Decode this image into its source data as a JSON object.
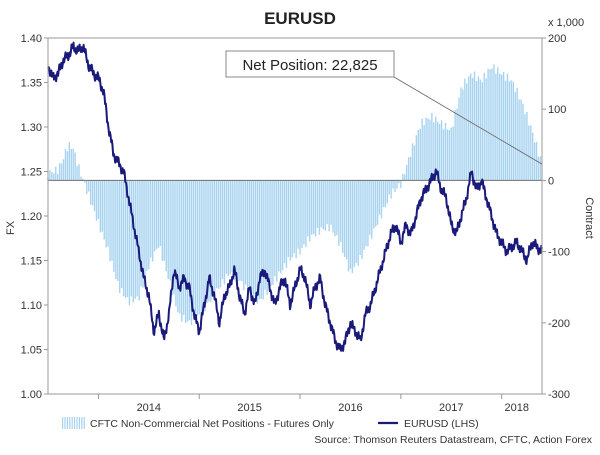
{
  "chart_data": {
    "type": "bar+line",
    "title": "EURUSD",
    "left_axis": {
      "label": "FX",
      "ylim": [
        1.0,
        1.4
      ],
      "ticks": [
        "1.00",
        "1.05",
        "1.10",
        "1.15",
        "1.20",
        "1.25",
        "1.30",
        "1.35",
        "1.40"
      ]
    },
    "right_axis": {
      "label": "Contract",
      "unit_note": "x 1,000",
      "ylim": [
        -300,
        200
      ],
      "ticks": [
        "-300",
        "-200",
        "-100",
        "0",
        "100",
        "200"
      ]
    },
    "x_axis": {
      "range": [
        2013.5,
        2018.4
      ],
      "ticks": [
        "2014",
        "2015",
        "2016",
        "2017",
        "2018"
      ]
    },
    "annotation": {
      "text": "Net Position: 22,825",
      "value": 22.825,
      "points_to": [
        2018.4,
        22.825
      ]
    },
    "series": [
      {
        "name": "CFTC Non-Commercial Net Positions - Futures Only",
        "type": "bar",
        "axis": "right",
        "color": "#a8d3f0",
        "x": [
          2013.5,
          2013.6,
          2013.65,
          2013.7,
          2013.75,
          2013.8,
          2013.9,
          2014.0,
          2014.1,
          2014.2,
          2014.3,
          2014.4,
          2014.5,
          2014.6,
          2014.7,
          2014.8,
          2014.9,
          2015.0,
          2015.1,
          2015.2,
          2015.3,
          2015.4,
          2015.5,
          2015.6,
          2015.7,
          2015.8,
          2015.9,
          2016.0,
          2016.1,
          2016.2,
          2016.3,
          2016.4,
          2016.5,
          2016.6,
          2016.7,
          2016.8,
          2016.9,
          2017.0,
          2017.1,
          2017.2,
          2017.3,
          2017.4,
          2017.5,
          2017.6,
          2017.7,
          2017.8,
          2017.9,
          2018.0,
          2018.1,
          2018.2,
          2018.3,
          2018.4
        ],
        "values": [
          10,
          15,
          30,
          50,
          45,
          20,
          -20,
          -60,
          -100,
          -150,
          -170,
          -165,
          -120,
          -90,
          -140,
          -190,
          -200,
          -190,
          -170,
          -150,
          -130,
          -140,
          -160,
          -170,
          -150,
          -130,
          -110,
          -100,
          -80,
          -70,
          -65,
          -90,
          -130,
          -110,
          -80,
          -50,
          -20,
          -5,
          40,
          80,
          90,
          80,
          70,
          130,
          150,
          140,
          160,
          150,
          140,
          110,
          70,
          22.825
        ]
      },
      {
        "name": "EURUSD (LHS)",
        "type": "line",
        "axis": "left",
        "color": "#1a1a7a",
        "x": [
          2013.5,
          2013.55,
          2013.6,
          2013.65,
          2013.7,
          2013.75,
          2013.8,
          2013.85,
          2013.9,
          2013.95,
          2014.0,
          2014.05,
          2014.1,
          2014.15,
          2014.2,
          2014.25,
          2014.3,
          2014.35,
          2014.4,
          2014.45,
          2014.5,
          2014.55,
          2014.6,
          2014.65,
          2014.7,
          2014.75,
          2014.8,
          2014.85,
          2014.9,
          2014.95,
          2015.0,
          2015.05,
          2015.1,
          2015.15,
          2015.2,
          2015.25,
          2015.3,
          2015.35,
          2015.4,
          2015.45,
          2015.5,
          2015.55,
          2015.6,
          2015.65,
          2015.7,
          2015.75,
          2015.8,
          2015.85,
          2015.9,
          2015.95,
          2016.0,
          2016.05,
          2016.1,
          2016.15,
          2016.2,
          2016.25,
          2016.3,
          2016.35,
          2016.4,
          2016.45,
          2016.5,
          2016.55,
          2016.6,
          2016.65,
          2016.7,
          2016.75,
          2016.8,
          2016.85,
          2016.9,
          2016.95,
          2017.0,
          2017.05,
          2017.1,
          2017.15,
          2017.2,
          2017.25,
          2017.3,
          2017.35,
          2017.4,
          2017.45,
          2017.5,
          2017.55,
          2017.6,
          2017.65,
          2017.7,
          2017.75,
          2017.8,
          2017.85,
          2017.9,
          2017.95,
          2018.0,
          2018.05,
          2018.1,
          2018.15,
          2018.2,
          2018.25,
          2018.3,
          2018.35,
          2018.4
        ],
        "values": [
          1.37,
          1.355,
          1.36,
          1.375,
          1.38,
          1.39,
          1.385,
          1.39,
          1.37,
          1.36,
          1.355,
          1.34,
          1.3,
          1.27,
          1.26,
          1.25,
          1.22,
          1.19,
          1.16,
          1.13,
          1.11,
          1.07,
          1.09,
          1.06,
          1.09,
          1.14,
          1.12,
          1.13,
          1.12,
          1.09,
          1.07,
          1.1,
          1.13,
          1.11,
          1.08,
          1.11,
          1.12,
          1.14,
          1.11,
          1.09,
          1.12,
          1.1,
          1.13,
          1.14,
          1.12,
          1.1,
          1.12,
          1.13,
          1.1,
          1.12,
          1.14,
          1.13,
          1.1,
          1.12,
          1.13,
          1.1,
          1.08,
          1.06,
          1.05,
          1.06,
          1.08,
          1.07,
          1.06,
          1.09,
          1.1,
          1.12,
          1.14,
          1.16,
          1.18,
          1.19,
          1.17,
          1.19,
          1.18,
          1.2,
          1.22,
          1.23,
          1.24,
          1.25,
          1.23,
          1.22,
          1.19,
          1.18,
          1.2,
          1.22,
          1.25,
          1.23,
          1.24,
          1.22,
          1.2,
          1.18,
          1.17,
          1.16,
          1.165,
          1.17,
          1.16,
          1.15,
          1.17,
          1.165,
          1.16
        ]
      }
    ],
    "legend": {
      "placement": "bottom",
      "entries": [
        "CFTC Non-Commercial Net Positions - Futures Only",
        "EURUSD (LHS)"
      ]
    },
    "source": "Source: Thomson Reuters Datastream, CFTC, Action Forex",
    "grid": false
  }
}
